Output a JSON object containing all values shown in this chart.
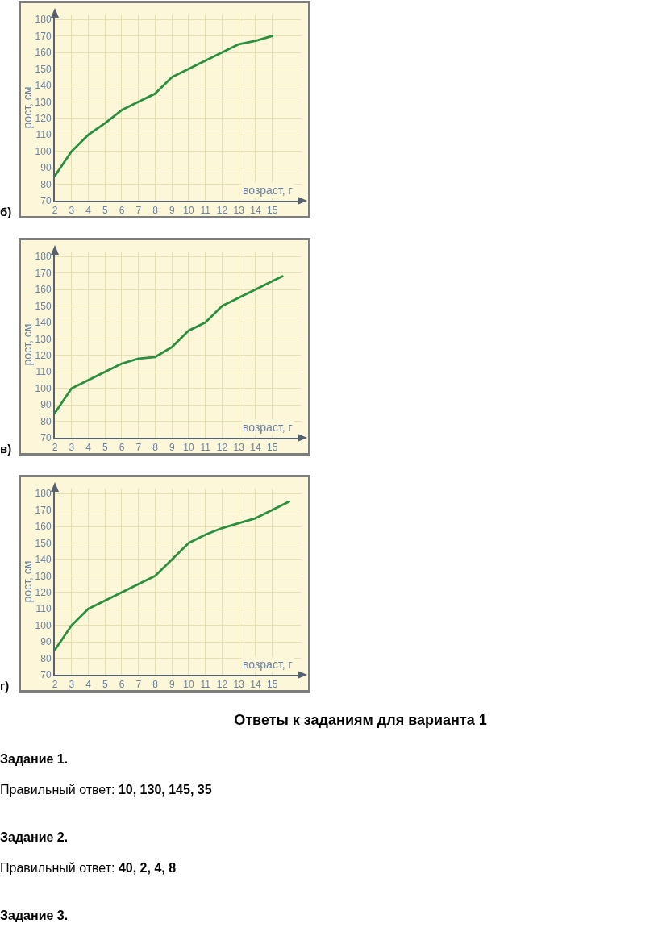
{
  "chart_data": [
    {
      "type": "line",
      "title": "б)",
      "xlabel": "возраст, г",
      "ylabel": "рост, см",
      "x": [
        2,
        3,
        4,
        5,
        6,
        7,
        8,
        9,
        10,
        11,
        12,
        13,
        14,
        15
      ],
      "series": [
        {
          "color": "#2b8f40",
          "values": [
            85,
            100,
            110,
            117,
            125,
            130,
            135,
            145,
            150,
            155,
            160,
            165,
            167,
            170
          ]
        }
      ],
      "xlim": [
        2,
        16.7
      ],
      "ylim": [
        70,
        183
      ],
      "xticks": [
        2,
        3,
        4,
        5,
        6,
        7,
        8,
        9,
        10,
        11,
        12,
        13,
        14,
        15
      ],
      "yticks": [
        70,
        80,
        90,
        100,
        110,
        120,
        130,
        140,
        150,
        160,
        170,
        180
      ],
      "grid": true
    },
    {
      "type": "line",
      "title": "в)",
      "xlabel": "возраст, г",
      "ylabel": "рост, см",
      "x": [
        2,
        3,
        4,
        5,
        6,
        7,
        8,
        9,
        10,
        11,
        12,
        13,
        14,
        15,
        15.6
      ],
      "series": [
        {
          "color": "#2b8f40",
          "values": [
            85,
            100,
            105,
            110,
            115,
            118,
            119,
            125,
            135,
            140,
            150,
            155,
            160,
            165,
            168
          ]
        }
      ],
      "xlim": [
        2,
        16.7
      ],
      "ylim": [
        70,
        183
      ],
      "xticks": [
        2,
        3,
        4,
        5,
        6,
        7,
        8,
        9,
        10,
        11,
        12,
        13,
        14,
        15
      ],
      "yticks": [
        70,
        80,
        90,
        100,
        110,
        120,
        130,
        140,
        150,
        160,
        170,
        180
      ],
      "grid": true
    },
    {
      "type": "line",
      "title": "г)",
      "xlabel": "возраст, г",
      "ylabel": "рост, см",
      "x": [
        2,
        3,
        4,
        5,
        6,
        7,
        8,
        9,
        10,
        11,
        12,
        13,
        14,
        15,
        16
      ],
      "series": [
        {
          "color": "#2b8f40",
          "values": [
            85,
            100,
            110,
            115,
            120,
            125,
            130,
            140,
            150,
            155,
            159,
            162,
            165,
            170,
            175
          ]
        }
      ],
      "xlim": [
        2,
        16.7
      ],
      "ylim": [
        70,
        183
      ],
      "xticks": [
        2,
        3,
        4,
        5,
        6,
        7,
        8,
        9,
        10,
        11,
        12,
        13,
        14,
        15
      ],
      "yticks": [
        70,
        80,
        90,
        100,
        110,
        120,
        130,
        140,
        150,
        160,
        170,
        180
      ],
      "grid": true
    },
    {
      "type": "other",
      "title": "Ответы к заданиям для варианта 1",
      "annotations": [
        "Задание 1.",
        "Правильный ответ: 10, 130, 145, 35",
        "Задание 2.",
        "Правильный ответ: 40, 2, 4, 8",
        "Задание 3."
      ]
    }
  ]
}
